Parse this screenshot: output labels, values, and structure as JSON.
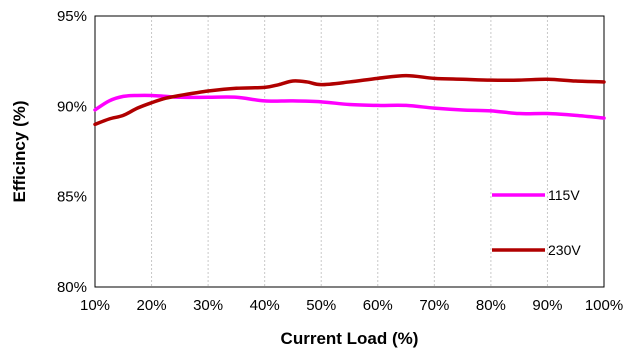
{
  "chart_data": {
    "type": "line",
    "xlabel": "Current Load (%)",
    "ylabel": "Efficincy (%)",
    "xlim": [
      10,
      100
    ],
    "ylim": [
      80,
      95
    ],
    "x_ticks": [
      10,
      20,
      30,
      40,
      50,
      60,
      70,
      80,
      90,
      100
    ],
    "x_tick_labels": [
      "10%",
      "20%",
      "30%",
      "40%",
      "50%",
      "60%",
      "70%",
      "80%",
      "90%",
      "100%"
    ],
    "y_ticks": [
      80,
      85,
      90,
      95
    ],
    "y_tick_labels": [
      "80%",
      "85%",
      "90%",
      "95%"
    ],
    "grid": "vertical dotted",
    "legend_position": "inside right",
    "series": [
      {
        "name": "115V",
        "color": "#FF00FF",
        "x": [
          10,
          12.5,
          15,
          17.5,
          20,
          22.5,
          25,
          30,
          35,
          40,
          45,
          50,
          55,
          60,
          65,
          70,
          75,
          80,
          85,
          90,
          95,
          100
        ],
        "y": [
          89.8,
          90.3,
          90.55,
          90.6,
          90.6,
          90.55,
          90.5,
          90.5,
          90.5,
          90.3,
          90.3,
          90.25,
          90.1,
          90.05,
          90.05,
          89.9,
          89.8,
          89.75,
          89.6,
          89.6,
          89.5,
          89.35
        ]
      },
      {
        "name": "230V",
        "color": "#B00000",
        "x": [
          10,
          12.5,
          15,
          17.5,
          20,
          22.5,
          25,
          30,
          35,
          40,
          42.5,
          45,
          47.5,
          50,
          55,
          60,
          65,
          70,
          75,
          80,
          85,
          90,
          95,
          100
        ],
        "y": [
          89.0,
          89.3,
          89.5,
          89.9,
          90.2,
          90.45,
          90.6,
          90.85,
          91.0,
          91.05,
          91.2,
          91.4,
          91.35,
          91.2,
          91.35,
          91.55,
          91.7,
          91.55,
          91.5,
          91.45,
          91.45,
          91.5,
          91.4,
          91.35
        ]
      }
    ]
  }
}
